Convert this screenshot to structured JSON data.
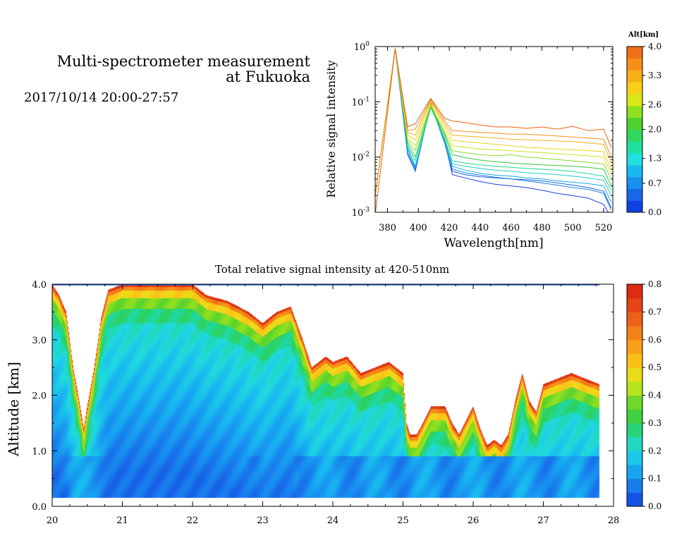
{
  "header": {
    "title_line1": "Multi-spectrometer measurement",
    "title_line2": "at Fukuoka",
    "subtitle": "2017/10/14 20:00-27:57"
  },
  "chart_data": [
    {
      "type": "line",
      "xlabel": "Wavelength[nm]",
      "ylabel": "Relative signal intensity",
      "yscale": "log",
      "xlim": [
        372,
        526
      ],
      "ylim": [
        0.001,
        1
      ],
      "x_ticks": [
        "380",
        "400",
        "420",
        "440",
        "460",
        "480",
        "500",
        "520"
      ],
      "y_ticks": [
        "10^-3",
        "10^-2",
        "10^-1",
        "10^0"
      ],
      "x": [
        372,
        385,
        393,
        398,
        408,
        417,
        422,
        430,
        440,
        450,
        460,
        470,
        480,
        490,
        500,
        510,
        520,
        525
      ],
      "series": [
        {
          "altitude_km": 0.0,
          "color": "#1a40e0",
          "values": [
            0.002,
            0.92,
            0.012,
            0.006,
            0.095,
            0.02,
            0.0048,
            0.0042,
            0.0036,
            0.0032,
            0.003,
            0.0028,
            0.0025,
            0.0022,
            0.002,
            0.0018,
            0.0014,
            0.0008
          ]
        },
        {
          "altitude_km": 0.3,
          "color": "#1f5fd8",
          "values": [
            0.002,
            0.92,
            0.011,
            0.0055,
            0.092,
            0.018,
            0.0055,
            0.0048,
            0.0044,
            0.0042,
            0.004,
            0.0039,
            0.0037,
            0.0034,
            0.0031,
            0.0028,
            0.0024,
            0.0012
          ]
        },
        {
          "altitude_km": 0.7,
          "color": "#1480e8",
          "values": [
            0.002,
            0.92,
            0.012,
            0.006,
            0.09,
            0.018,
            0.006,
            0.0052,
            0.0047,
            0.0043,
            0.004,
            0.0037,
            0.0034,
            0.0031,
            0.0028,
            0.0026,
            0.0022,
            0.0011
          ]
        },
        {
          "altitude_km": 1.0,
          "color": "#12a8e8",
          "values": [
            0.002,
            0.92,
            0.014,
            0.0065,
            0.085,
            0.02,
            0.0068,
            0.0058,
            0.0051,
            0.0047,
            0.0045,
            0.0042,
            0.004,
            0.0037,
            0.0035,
            0.0033,
            0.003,
            0.0015
          ]
        },
        {
          "altitude_km": 1.3,
          "color": "#1ed0c8",
          "values": [
            0.002,
            0.92,
            0.015,
            0.007,
            0.08,
            0.021,
            0.0075,
            0.0068,
            0.0062,
            0.0058,
            0.0055,
            0.0052,
            0.005,
            0.0048,
            0.0045,
            0.0042,
            0.0038,
            0.002
          ]
        },
        {
          "altitude_km": 1.6,
          "color": "#20d890",
          "values": [
            0.002,
            0.92,
            0.016,
            0.0085,
            0.078,
            0.022,
            0.0085,
            0.0078,
            0.0072,
            0.0068,
            0.0065,
            0.0062,
            0.006,
            0.0058,
            0.0055,
            0.005,
            0.0045,
            0.0025
          ]
        },
        {
          "altitude_km": 2.0,
          "color": "#30c838",
          "values": [
            0.002,
            0.92,
            0.018,
            0.01,
            0.082,
            0.025,
            0.011,
            0.0098,
            0.0088,
            0.0082,
            0.0078,
            0.0075,
            0.0072,
            0.007,
            0.0068,
            0.0065,
            0.006,
            0.003
          ]
        },
        {
          "altitude_km": 2.3,
          "color": "#88d830",
          "values": [
            0.002,
            0.92,
            0.02,
            0.013,
            0.085,
            0.027,
            0.013,
            0.012,
            0.011,
            0.0105,
            0.011,
            0.01,
            0.0095,
            0.009,
            0.0085,
            0.008,
            0.0075,
            0.004
          ]
        },
        {
          "altitude_km": 2.6,
          "color": "#d0e020",
          "values": [
            0.002,
            0.92,
            0.022,
            0.016,
            0.09,
            0.03,
            0.016,
            0.015,
            0.014,
            0.0135,
            0.013,
            0.0125,
            0.012,
            0.0115,
            0.011,
            0.0105,
            0.01,
            0.005
          ]
        },
        {
          "altitude_km": 3.0,
          "color": "#f0d020",
          "values": [
            0.002,
            0.92,
            0.025,
            0.02,
            0.1,
            0.035,
            0.02,
            0.019,
            0.018,
            0.017,
            0.016,
            0.015,
            0.0145,
            0.014,
            0.0135,
            0.013,
            0.0125,
            0.006
          ]
        },
        {
          "altitude_km": 3.3,
          "color": "#f5b020",
          "values": [
            0.002,
            0.92,
            0.028,
            0.025,
            0.105,
            0.04,
            0.025,
            0.024,
            0.023,
            0.022,
            0.021,
            0.0205,
            0.02,
            0.0195,
            0.019,
            0.018,
            0.017,
            0.008
          ]
        },
        {
          "altitude_km": 3.6,
          "color": "#f09020",
          "values": [
            0.002,
            0.92,
            0.03,
            0.032,
            0.11,
            0.045,
            0.03,
            0.029,
            0.028,
            0.027,
            0.026,
            0.026,
            0.025,
            0.024,
            0.023,
            0.022,
            0.021,
            0.01
          ]
        },
        {
          "altitude_km": 4.0,
          "color": "#e86010",
          "values": [
            0.0009,
            0.92,
            0.035,
            0.04,
            0.115,
            0.05,
            0.045,
            0.042,
            0.038,
            0.035,
            0.035,
            0.033,
            0.035,
            0.032,
            0.036,
            0.03,
            0.032,
            0.015
          ]
        }
      ],
      "colorbar": {
        "title": "Alt[km]",
        "min": 0.0,
        "max": 4.0,
        "labels": [
          "0.0",
          "0.7",
          "1.3",
          "2.0",
          "2.6",
          "3.3",
          "4.0"
        ]
      }
    },
    {
      "type": "heatmap",
      "title": "Total relative signal intensity at 420-510nm",
      "ylabel": "Altitude [km]",
      "xlim": [
        20,
        28
      ],
      "ylim": [
        0.0,
        4.0
      ],
      "x_ticks": [
        "20",
        "21",
        "22",
        "23",
        "24",
        "25",
        "26",
        "27",
        "28"
      ],
      "y_ticks": [
        "0.0",
        "1.0",
        "2.0",
        "3.0",
        "4.0"
      ],
      "data_x_range": [
        20.0,
        27.8
      ],
      "data_y_min": 0.15,
      "note_top": "data above the cloud-base contour is blank (white)",
      "cloud_base_profile_km": {
        "x": [
          20.0,
          20.1,
          20.2,
          20.3,
          20.4,
          20.45,
          20.5,
          20.6,
          20.7,
          20.8,
          21.0,
          21.2,
          21.4,
          21.6,
          21.8,
          22.0,
          22.2,
          22.5,
          22.8,
          23.0,
          23.2,
          23.4,
          23.6,
          23.7,
          23.8,
          23.9,
          24.0,
          24.2,
          24.4,
          24.6,
          24.8,
          25.0,
          25.05,
          25.1,
          25.2,
          25.4,
          25.6,
          25.7,
          25.8,
          26.0,
          26.1,
          26.2,
          26.3,
          26.4,
          26.5,
          26.6,
          26.7,
          26.8,
          26.9,
          27.0,
          27.2,
          27.4,
          27.6,
          27.8
        ],
        "y": [
          4.0,
          3.8,
          3.5,
          2.5,
          1.8,
          1.4,
          1.8,
          2.5,
          3.4,
          3.9,
          4.0,
          4.0,
          4.0,
          4.0,
          4.0,
          4.0,
          3.8,
          3.7,
          3.5,
          3.3,
          3.5,
          3.6,
          2.9,
          2.5,
          2.6,
          2.7,
          2.6,
          2.7,
          2.4,
          2.5,
          2.6,
          2.4,
          1.5,
          1.3,
          1.3,
          1.8,
          1.8,
          1.5,
          1.3,
          1.8,
          1.4,
          1.1,
          1.2,
          1.1,
          1.3,
          1.9,
          2.4,
          1.9,
          1.7,
          2.2,
          2.3,
          2.4,
          2.3,
          2.2
        ]
      },
      "colorbar": {
        "min": 0.0,
        "max": 0.8,
        "labels": [
          "0.0",
          "0.1",
          "0.2",
          "0.3",
          "0.4",
          "0.5",
          "0.6",
          "0.7",
          "0.8"
        ]
      }
    }
  ]
}
